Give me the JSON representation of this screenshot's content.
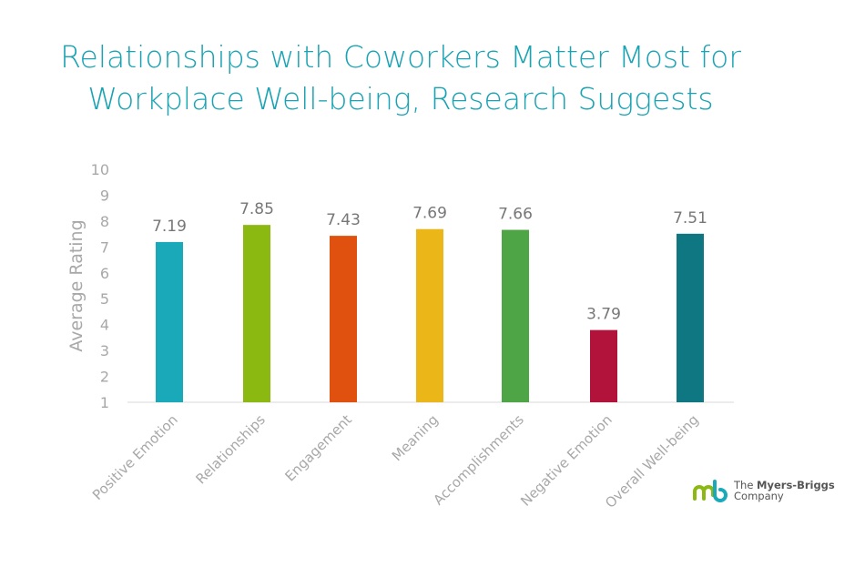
{
  "chart_data": {
    "type": "bar",
    "title": "Relationships with Coworkers Matter Most for Workplace Well-being, Research Suggests",
    "title_lines": [
      "Relationships with Coworkers Matter Most for",
      "Workplace Well-being, Research Suggests"
    ],
    "xlabel": "",
    "ylabel": "Average Rating",
    "ylim": [
      1,
      10
    ],
    "yticks": [
      1,
      2,
      3,
      4,
      5,
      6,
      7,
      8,
      9,
      10
    ],
    "grid": false,
    "categories": [
      "Positive Emotion",
      "Relationships",
      "Engagement",
      "Meaning",
      "Accomplishments",
      "Negative Emotion",
      "Overall Well-being"
    ],
    "values": [
      7.19,
      7.85,
      7.43,
      7.69,
      7.66,
      3.79,
      7.51
    ],
    "value_labels": [
      "7.19",
      "7.85",
      "7.43",
      "7.69",
      "7.66",
      "3.79",
      "7.51"
    ],
    "colors": [
      "#19a9b9",
      "#8cb812",
      "#e0500e",
      "#ebb718",
      "#4ea545",
      "#b1133b",
      "#0f7781"
    ]
  },
  "logo": {
    "line1_prefix": "The ",
    "line1_bold": "Myers-Briggs",
    "line2": "Company",
    "colors": [
      "#8cb812",
      "#19a9b9"
    ]
  }
}
